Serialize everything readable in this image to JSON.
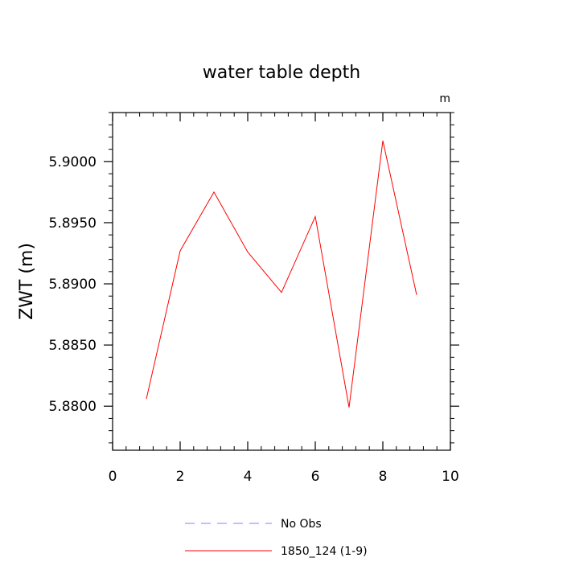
{
  "chart_data": {
    "type": "line",
    "title": "water table depth",
    "units_label": "m",
    "xlabel": "",
    "ylabel": "ZWT  (m)",
    "xlim": [
      0,
      10
    ],
    "ylim": [
      5.8764,
      5.904
    ],
    "x_ticks": [
      0,
      2,
      4,
      6,
      8,
      10
    ],
    "x_tick_labels": [
      "0",
      "2",
      "4",
      "6",
      "8",
      "10"
    ],
    "y_ticks": [
      5.88,
      5.885,
      5.89,
      5.895,
      5.9
    ],
    "y_tick_labels": [
      "5.8800",
      "5.8850",
      "5.8900",
      "5.8950",
      "5.9000"
    ],
    "grid": false,
    "legend_position": "bottom",
    "series": [
      {
        "name": "1850_124 (1-9)",
        "color": "#ff0000",
        "style": "solid",
        "x": [
          1,
          2,
          3,
          4,
          5,
          6,
          7,
          8,
          9
        ],
        "y": [
          5.8806,
          5.8927,
          5.8975,
          5.8926,
          5.8893,
          5.8955,
          5.8799,
          5.9017,
          5.8891
        ]
      }
    ],
    "legend": [
      {
        "label": "No Obs",
        "color": "#8080ff",
        "style": "dashed"
      },
      {
        "label": "1850_124 (1-9)",
        "color": "#ff0000",
        "style": "solid"
      }
    ]
  }
}
